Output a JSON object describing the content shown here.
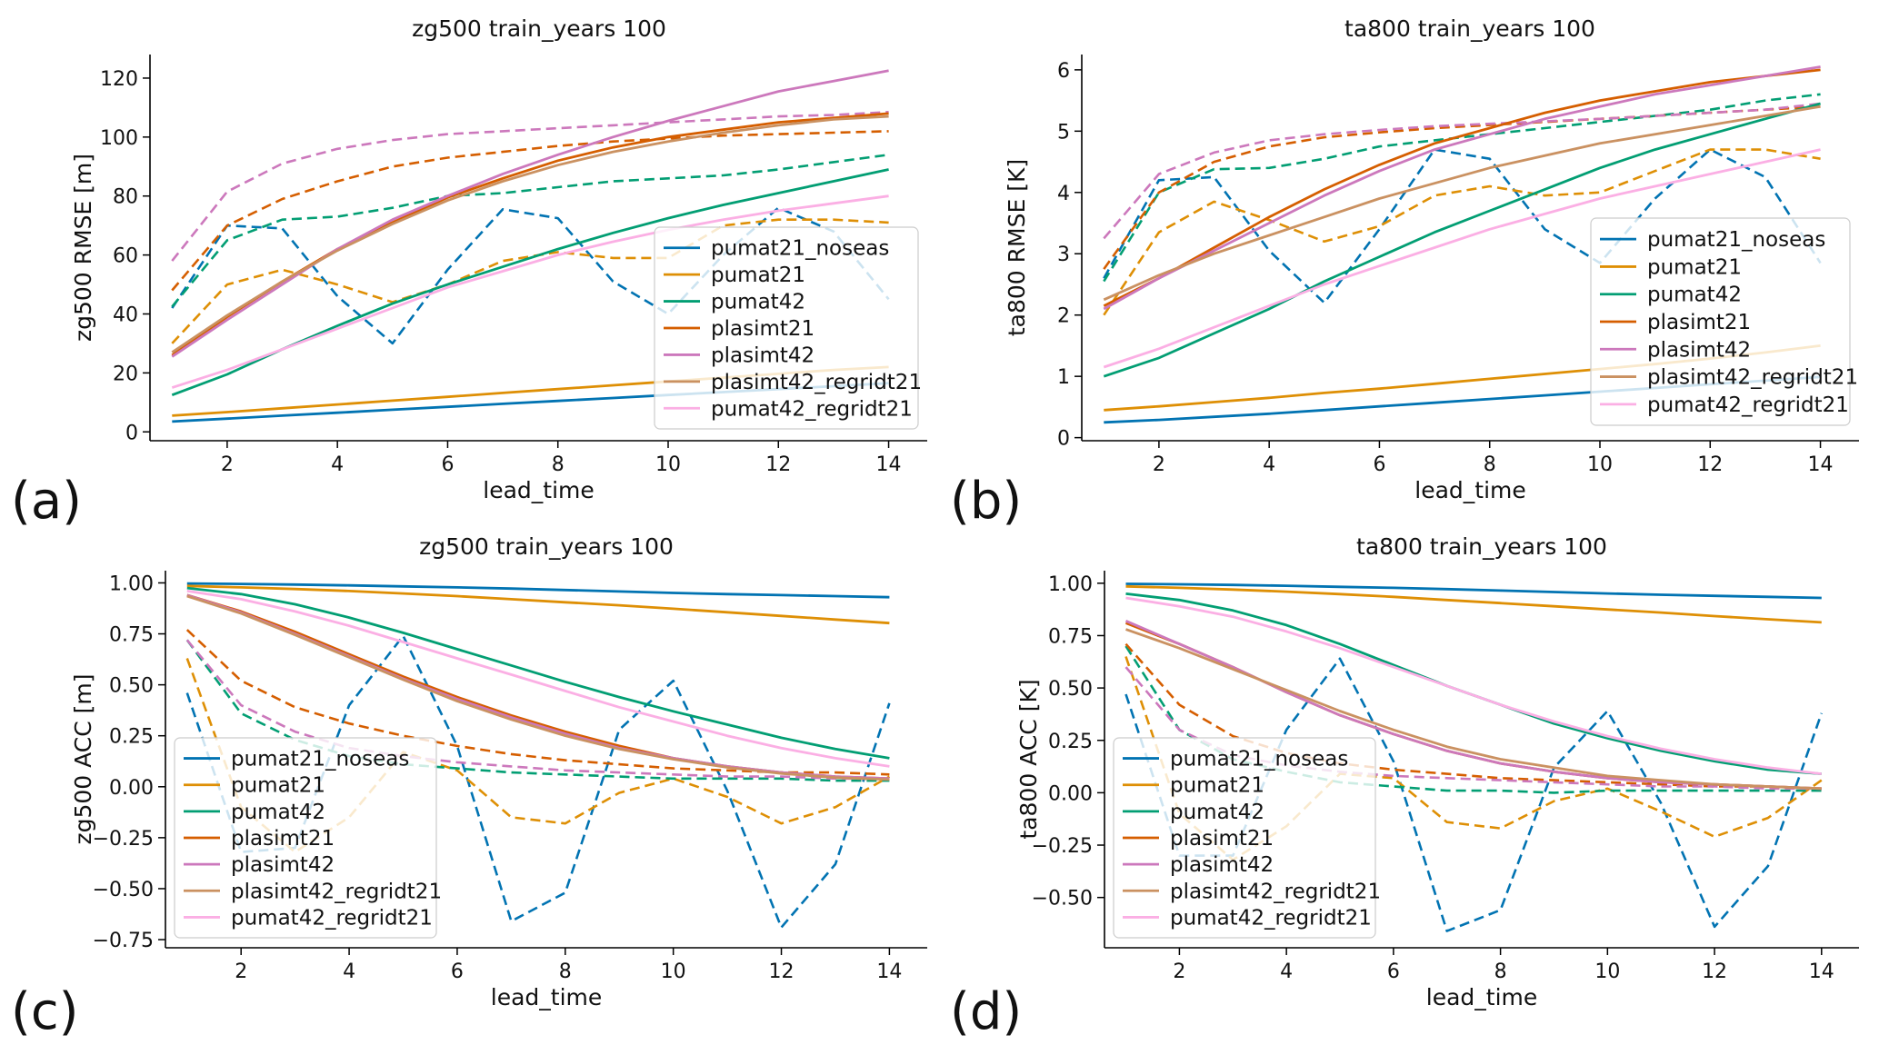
{
  "chart_data": [
    {
      "type": "line",
      "panel_label": "(a)",
      "title": "zg500 train_years 100",
      "xlabel": "lead_time",
      "ylabel": "zg500 RMSE [m]",
      "xlim": [
        0.6,
        14.7
      ],
      "ylim": [
        -3,
        128
      ],
      "xticks": [
        2,
        4,
        6,
        8,
        10,
        12,
        14
      ],
      "yticks": [
        0,
        20,
        40,
        60,
        80,
        100,
        120
      ],
      "legend": "lower-right",
      "x": [
        1,
        2,
        3,
        4,
        5,
        6,
        7,
        8,
        9,
        10,
        11,
        12,
        13,
        14
      ],
      "series": [
        {
          "name": "pumat21_noseas",
          "color": "#0173b2",
          "solid": [
            3.5,
            4.5,
            5.5,
            6.5,
            7.5,
            8.5,
            9.5,
            10.5,
            11.5,
            12.5,
            13.5,
            14.5,
            15.5,
            16.5
          ],
          "dashed": [
            42,
            70,
            69,
            46,
            30,
            55,
            75.5,
            72.5,
            51,
            40,
            60,
            76,
            68,
            45
          ]
        },
        {
          "name": "pumat21",
          "color": "#de8f05",
          "solid": [
            5.5,
            6.7,
            8,
            9.3,
            10.6,
            11.9,
            13.2,
            14.5,
            15.8,
            17.1,
            18.4,
            19.7,
            21,
            22
          ],
          "dashed": [
            30,
            50,
            55,
            50,
            44,
            50,
            58,
            61,
            59,
            59,
            70,
            72,
            72,
            71
          ]
        },
        {
          "name": "pumat42",
          "color": "#029e73",
          "solid": [
            12.5,
            19.5,
            28,
            36,
            43.5,
            50,
            56,
            62,
            67.5,
            72.5,
            77,
            81,
            85,
            89
          ],
          "dashed": [
            42.5,
            65,
            72,
            73,
            76,
            80,
            81,
            83,
            85,
            86,
            87,
            89,
            91.5,
            94
          ]
        },
        {
          "name": "plasimt21",
          "color": "#d55e00",
          "solid": [
            26,
            39,
            51,
            62,
            71,
            79.5,
            86,
            92,
            96.5,
            100,
            102.5,
            105,
            106.5,
            108
          ],
          "dashed": [
            48,
            70,
            79,
            85,
            90,
            93,
            95,
            97,
            98.5,
            99.5,
            100.5,
            101,
            101.5,
            102
          ]
        },
        {
          "name": "plasimt42",
          "color": "#cc78bc",
          "solid": [
            25.5,
            38,
            50,
            62,
            72,
            80,
            87.5,
            94,
            100,
            105.5,
            110.5,
            115.5,
            119,
            122.5
          ],
          "dashed": [
            58,
            81.5,
            91,
            96,
            99,
            101,
            102,
            103,
            104,
            105,
            106,
            107,
            107.5,
            108.5
          ]
        },
        {
          "name": "plasimt42_regridt21",
          "color": "#ca9161",
          "solid": [
            27,
            39.5,
            51,
            61.5,
            70.5,
            78.5,
            85,
            90.5,
            95,
            98.5,
            101.5,
            104,
            106,
            107
          ]
        },
        {
          "name": "pumat42_regridt21",
          "color": "#fbafe4",
          "solid": [
            15,
            21,
            28,
            35,
            42,
            49,
            54.5,
            60,
            64.5,
            68.5,
            72,
            75,
            77.5,
            80
          ]
        }
      ]
    },
    {
      "type": "line",
      "panel_label": "(b)",
      "title": "ta800 train_years 100",
      "xlabel": "lead_time",
      "ylabel": "ta800 RMSE [K]",
      "xlim": [
        0.6,
        14.7
      ],
      "ylim": [
        -0.05,
        6.25
      ],
      "xticks": [
        2,
        4,
        6,
        8,
        10,
        12,
        14
      ],
      "yticks": [
        0,
        1,
        2,
        3,
        4,
        5,
        6
      ],
      "legend": "lower-right",
      "x": [
        1,
        2,
        3,
        4,
        5,
        6,
        7,
        8,
        9,
        10,
        11,
        12,
        13,
        14
      ],
      "series": [
        {
          "name": "pumat21_noseas",
          "color": "#0173b2",
          "solid": [
            0.25,
            0.29,
            0.34,
            0.39,
            0.45,
            0.51,
            0.57,
            0.63,
            0.69,
            0.75,
            0.81,
            0.87,
            0.93,
            0.99
          ],
          "dashed": [
            2.6,
            4.2,
            4.25,
            3.05,
            2.2,
            3.4,
            4.7,
            4.55,
            3.4,
            2.85,
            3.9,
            4.7,
            4.25,
            2.85
          ]
        },
        {
          "name": "pumat21",
          "color": "#de8f05",
          "solid": [
            0.45,
            0.51,
            0.58,
            0.65,
            0.73,
            0.8,
            0.88,
            0.96,
            1.04,
            1.12,
            1.2,
            1.29,
            1.39,
            1.5
          ],
          "dashed": [
            2.0,
            3.35,
            3.85,
            3.55,
            3.2,
            3.45,
            3.95,
            4.1,
            3.95,
            4.0,
            4.35,
            4.7,
            4.7,
            4.55
          ]
        },
        {
          "name": "pumat42",
          "color": "#029e73",
          "solid": [
            1.0,
            1.3,
            1.7,
            2.1,
            2.55,
            2.95,
            3.35,
            3.7,
            4.05,
            4.4,
            4.7,
            4.95,
            5.2,
            5.45
          ],
          "dashed": [
            2.55,
            4.0,
            4.38,
            4.4,
            4.55,
            4.75,
            4.85,
            4.95,
            5.05,
            5.15,
            5.25,
            5.35,
            5.5,
            5.6
          ]
        },
        {
          "name": "plasimt21",
          "color": "#d55e00",
          "solid": [
            2.15,
            2.6,
            3.1,
            3.6,
            4.05,
            4.45,
            4.8,
            5.05,
            5.3,
            5.5,
            5.65,
            5.8,
            5.9,
            6.0
          ],
          "dashed": [
            2.75,
            4.0,
            4.5,
            4.75,
            4.9,
            4.98,
            5.05,
            5.1,
            5.15,
            5.2,
            5.25,
            5.3,
            5.35,
            5.4
          ]
        },
        {
          "name": "plasimt42",
          "color": "#cc78bc",
          "solid": [
            2.1,
            2.6,
            3.05,
            3.5,
            3.95,
            4.35,
            4.7,
            4.95,
            5.2,
            5.4,
            5.6,
            5.75,
            5.9,
            6.05
          ],
          "dashed": [
            3.25,
            4.3,
            4.65,
            4.85,
            4.95,
            5.02,
            5.08,
            5.12,
            5.16,
            5.2,
            5.25,
            5.3,
            5.35,
            5.45
          ]
        },
        {
          "name": "plasimt42_regridt21",
          "color": "#ca9161",
          "solid": [
            2.25,
            2.65,
            3.0,
            3.3,
            3.6,
            3.9,
            4.15,
            4.4,
            4.6,
            4.8,
            4.95,
            5.1,
            5.25,
            5.4
          ]
        },
        {
          "name": "pumat42_regridt21",
          "color": "#fbafe4",
          "solid": [
            1.15,
            1.45,
            1.8,
            2.15,
            2.5,
            2.8,
            3.1,
            3.4,
            3.65,
            3.9,
            4.1,
            4.3,
            4.5,
            4.7
          ]
        }
      ]
    },
    {
      "type": "line",
      "panel_label": "(c)",
      "title": "zg500 train_years 100",
      "xlabel": "lead_time",
      "ylabel": "zg500 ACC [m]",
      "xlim": [
        0.6,
        14.7
      ],
      "ylim": [
        -0.79,
        1.06
      ],
      "xticks": [
        2,
        4,
        6,
        8,
        10,
        12,
        14
      ],
      "yticks": [
        -0.75,
        -0.5,
        -0.25,
        0.0,
        0.25,
        0.5,
        0.75,
        1.0
      ],
      "ytick_labels": [
        "−0.75",
        "−0.50",
        "−0.25",
        "0.00",
        "0.25",
        "0.50",
        "0.75",
        "1.00"
      ],
      "legend": "lower-left",
      "x": [
        1,
        2,
        3,
        4,
        5,
        6,
        7,
        8,
        9,
        10,
        11,
        12,
        13,
        14
      ],
      "series": [
        {
          "name": "pumat21_noseas",
          "color": "#0173b2",
          "solid": [
            0.997,
            0.995,
            0.992,
            0.988,
            0.983,
            0.978,
            0.972,
            0.965,
            0.958,
            0.951,
            0.945,
            0.94,
            0.935,
            0.93
          ],
          "dashed": [
            0.46,
            -0.32,
            -0.3,
            0.4,
            0.74,
            0.2,
            -0.66,
            -0.52,
            0.28,
            0.52,
            -0.02,
            -0.69,
            -0.38,
            0.41
          ]
        },
        {
          "name": "pumat21",
          "color": "#de8f05",
          "solid": [
            0.985,
            0.978,
            0.97,
            0.96,
            0.948,
            0.935,
            0.92,
            0.905,
            0.89,
            0.873,
            0.856,
            0.838,
            0.82,
            0.803
          ],
          "dashed": [
            0.63,
            -0.1,
            -0.32,
            -0.15,
            0.17,
            0.08,
            -0.15,
            -0.18,
            -0.03,
            0.04,
            -0.05,
            -0.18,
            -0.1,
            0.05
          ]
        },
        {
          "name": "pumat42",
          "color": "#029e73",
          "solid": [
            0.975,
            0.945,
            0.895,
            0.83,
            0.755,
            0.675,
            0.595,
            0.515,
            0.44,
            0.37,
            0.305,
            0.24,
            0.185,
            0.14
          ],
          "dashed": [
            0.72,
            0.36,
            0.23,
            0.15,
            0.11,
            0.09,
            0.07,
            0.06,
            0.05,
            0.04,
            0.04,
            0.04,
            0.03,
            0.03
          ]
        },
        {
          "name": "plasimt21",
          "color": "#d55e00",
          "solid": [
            0.94,
            0.86,
            0.76,
            0.65,
            0.54,
            0.44,
            0.35,
            0.27,
            0.2,
            0.14,
            0.1,
            0.07,
            0.05,
            0.04
          ],
          "dashed": [
            0.77,
            0.52,
            0.39,
            0.31,
            0.25,
            0.2,
            0.16,
            0.13,
            0.11,
            0.09,
            0.08,
            0.07,
            0.07,
            0.06
          ]
        },
        {
          "name": "plasimt42",
          "color": "#cc78bc",
          "solid": [
            0.94,
            0.855,
            0.75,
            0.64,
            0.53,
            0.43,
            0.34,
            0.26,
            0.19,
            0.14,
            0.1,
            0.07,
            0.05,
            0.04
          ],
          "dashed": [
            0.72,
            0.4,
            0.27,
            0.19,
            0.15,
            0.12,
            0.1,
            0.08,
            0.07,
            0.06,
            0.05,
            0.05,
            0.04,
            0.04
          ]
        },
        {
          "name": "plasimt42_regridt21",
          "color": "#ca9161",
          "solid": [
            0.935,
            0.85,
            0.745,
            0.635,
            0.525,
            0.42,
            0.33,
            0.25,
            0.185,
            0.135,
            0.095,
            0.065,
            0.045,
            0.035
          ]
        },
        {
          "name": "pumat42_regridt21",
          "color": "#fbafe4",
          "solid": [
            0.96,
            0.92,
            0.86,
            0.79,
            0.71,
            0.63,
            0.55,
            0.47,
            0.39,
            0.32,
            0.25,
            0.19,
            0.14,
            0.1
          ]
        }
      ]
    },
    {
      "type": "line",
      "panel_label": "(d)",
      "title": "ta800 train_years 100",
      "xlabel": "lead_time",
      "ylabel": "ta800 ACC [K]",
      "xlim": [
        0.6,
        14.7
      ],
      "ylim": [
        -0.74,
        1.06
      ],
      "xticks": [
        2,
        4,
        6,
        8,
        10,
        12,
        14
      ],
      "yticks": [
        -0.5,
        -0.25,
        0.0,
        0.25,
        0.5,
        0.75,
        1.0
      ],
      "ytick_labels": [
        "−0.50",
        "−0.25",
        "0.00",
        "0.25",
        "0.50",
        "0.75",
        "1.00"
      ],
      "legend": "lower-left",
      "x": [
        1,
        2,
        3,
        4,
        5,
        6,
        7,
        8,
        9,
        10,
        11,
        12,
        13,
        14
      ],
      "series": [
        {
          "name": "pumat21_noseas",
          "color": "#0173b2",
          "solid": [
            0.997,
            0.995,
            0.992,
            0.988,
            0.983,
            0.978,
            0.972,
            0.965,
            0.958,
            0.951,
            0.945,
            0.94,
            0.935,
            0.93
          ],
          "dashed": [
            0.47,
            -0.3,
            -0.3,
            0.3,
            0.64,
            0.15,
            -0.66,
            -0.56,
            0.12,
            0.39,
            -0.05,
            -0.64,
            -0.35,
            0.38
          ]
        },
        {
          "name": "pumat21",
          "color": "#de8f05",
          "solid": [
            0.985,
            0.978,
            0.97,
            0.96,
            0.948,
            0.935,
            0.92,
            0.905,
            0.89,
            0.875,
            0.86,
            0.843,
            0.828,
            0.813
          ],
          "dashed": [
            0.65,
            -0.1,
            -0.32,
            -0.16,
            0.09,
            0.07,
            -0.14,
            -0.17,
            -0.04,
            0.02,
            -0.09,
            -0.21,
            -0.12,
            0.06
          ]
        },
        {
          "name": "pumat42",
          "color": "#029e73",
          "solid": [
            0.95,
            0.92,
            0.87,
            0.8,
            0.71,
            0.61,
            0.51,
            0.42,
            0.33,
            0.26,
            0.2,
            0.15,
            0.11,
            0.09
          ],
          "dashed": [
            0.7,
            0.3,
            0.16,
            0.1,
            0.05,
            0.03,
            0.01,
            0.01,
            0.0,
            0.01,
            0.01,
            0.01,
            0.01,
            0.01
          ]
        },
        {
          "name": "plasimt21",
          "color": "#d55e00",
          "solid": [
            0.81,
            0.71,
            0.6,
            0.48,
            0.37,
            0.28,
            0.2,
            0.14,
            0.1,
            0.07,
            0.05,
            0.04,
            0.03,
            0.02
          ],
          "dashed": [
            0.71,
            0.42,
            0.27,
            0.19,
            0.14,
            0.11,
            0.09,
            0.07,
            0.06,
            0.05,
            0.04,
            0.03,
            0.03,
            0.02
          ]
        },
        {
          "name": "plasimt42",
          "color": "#cc78bc",
          "solid": [
            0.82,
            0.71,
            0.6,
            0.48,
            0.37,
            0.28,
            0.2,
            0.14,
            0.1,
            0.07,
            0.05,
            0.04,
            0.03,
            0.02
          ],
          "dashed": [
            0.6,
            0.3,
            0.18,
            0.13,
            0.1,
            0.08,
            0.07,
            0.06,
            0.05,
            0.04,
            0.03,
            0.03,
            0.02,
            0.02
          ]
        },
        {
          "name": "plasimt42_regridt21",
          "color": "#ca9161",
          "solid": [
            0.78,
            0.69,
            0.59,
            0.49,
            0.39,
            0.3,
            0.22,
            0.16,
            0.12,
            0.08,
            0.06,
            0.04,
            0.03,
            0.02
          ]
        },
        {
          "name": "pumat42_regridt21",
          "color": "#fbafe4",
          "solid": [
            0.93,
            0.89,
            0.84,
            0.77,
            0.69,
            0.6,
            0.51,
            0.42,
            0.34,
            0.27,
            0.21,
            0.16,
            0.12,
            0.09
          ]
        }
      ]
    }
  ]
}
